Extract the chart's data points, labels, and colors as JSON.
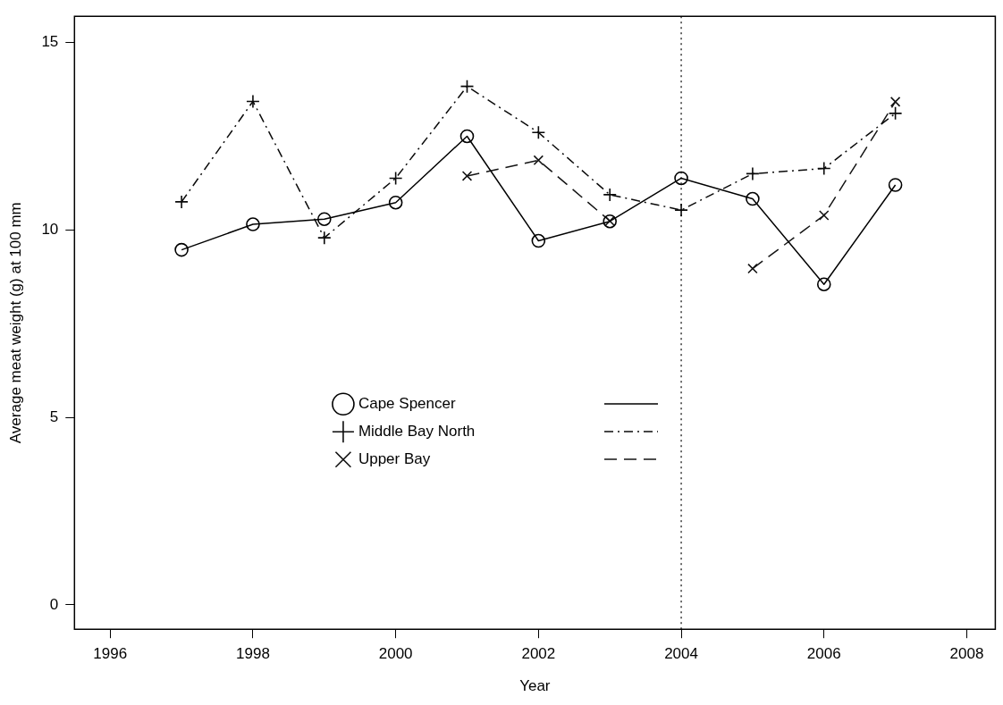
{
  "chart_data": {
    "type": "line",
    "xlabel": "Year",
    "ylabel": "Average meat weight (g) at 100 mm",
    "x": [
      1997,
      1998,
      1999,
      2000,
      2001,
      2002,
      2003,
      2004,
      2005,
      2006,
      2007
    ],
    "series": [
      {
        "name": "Cape Spencer",
        "color": "#000000",
        "marker": "circle",
        "line_style": "solid",
        "values": [
          9.47,
          10.15,
          10.29,
          10.73,
          12.5,
          9.71,
          10.23,
          11.38,
          10.83,
          8.55,
          11.2
        ]
      },
      {
        "name": "Middle Bay North",
        "color": "#0a0a0a",
        "marker": "cross",
        "line_style": "dashed",
        "values": [
          10.75,
          13.43,
          9.79,
          11.38,
          13.83,
          12.6,
          10.94,
          10.53,
          11.5,
          11.64,
          13.11
        ]
      },
      {
        "name": "Upper Bay",
        "color": "#141414",
        "marker": "x",
        "line_style": "dashed",
        "values": [
          null,
          null,
          null,
          null,
          11.44,
          11.86,
          10.24,
          null,
          8.97,
          10.39,
          13.42
        ]
      }
    ],
    "xlim": [
      1995.5,
      2008.4
    ],
    "xticks": [
      1996,
      1998,
      2000,
      2002,
      2004,
      2006,
      2008
    ],
    "ylim": [
      -0.65,
      15.7
    ],
    "yticks": [
      0,
      5,
      10,
      15
    ],
    "ref_lines": [
      {
        "axis": "x",
        "value": 2004,
        "line_style": "dotted",
        "color": "#000000"
      }
    ],
    "grid": false,
    "legend": "left"
  }
}
